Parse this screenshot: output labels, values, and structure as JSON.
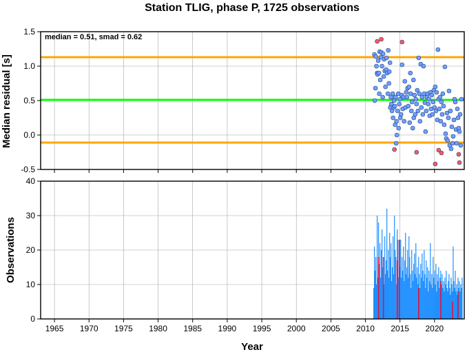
{
  "chart_data": [
    {
      "type": "scatter",
      "title": "Station TLIG, phase P, 1725 observations",
      "xlabel": "",
      "ylabel": "Median residual [s]",
      "xlim": [
        1963,
        2024.3
      ],
      "ylim": [
        -0.5,
        1.5
      ],
      "yticks": [
        "1.5",
        "1.0",
        "0.5",
        "0.0",
        "-0.5"
      ],
      "annotation": "median = 0.51, smad = 0.62",
      "reference_lines": [
        {
          "y": 1.13,
          "color": "#ffa500"
        },
        {
          "y": 0.51,
          "color": "#00ff00"
        },
        {
          "y": -0.11,
          "color": "#ffa500"
        }
      ],
      "series": [
        {
          "color": "#6fa0ff",
          "points": [
            [
              2011.3,
              1.17
            ],
            [
              2011.35,
              0.5
            ],
            [
              2011.45,
              0.68
            ],
            [
              2011.5,
              1.14
            ],
            [
              2011.6,
              1.0
            ],
            [
              2011.7,
              0.9
            ],
            [
              2011.75,
              0.88
            ],
            [
              2011.85,
              1.08
            ],
            [
              2011.95,
              0.9
            ],
            [
              2012.0,
              0.6
            ],
            [
              2012.05,
              1.21
            ],
            [
              2012.15,
              0.8
            ],
            [
              2012.25,
              1.13
            ],
            [
              2012.3,
              1.2
            ],
            [
              2012.4,
              1.0
            ],
            [
              2012.5,
              0.55
            ],
            [
              2012.55,
              1.18
            ],
            [
              2012.65,
              0.85
            ],
            [
              2012.7,
              1.1
            ],
            [
              2012.8,
              0.93
            ],
            [
              2012.9,
              0.7
            ],
            [
              2013.0,
              0.95
            ],
            [
              2013.05,
              1.12
            ],
            [
              2013.15,
              0.9
            ],
            [
              2013.25,
              0.6
            ],
            [
              2013.3,
              1.23
            ],
            [
              2013.4,
              0.75
            ],
            [
              2013.45,
              0.92
            ],
            [
              2013.55,
              1.05
            ],
            [
              2013.6,
              0.4
            ],
            [
              2013.7,
              0.55
            ],
            [
              2013.75,
              0.45
            ],
            [
              2013.85,
              0.35
            ],
            [
              2013.95,
              0.6
            ],
            [
              2014.0,
              0.25
            ],
            [
              2014.1,
              0.4
            ],
            [
              2014.15,
              0.5
            ],
            [
              2014.25,
              0.42
            ],
            [
              2014.3,
              0.15
            ],
            [
              2014.35,
              0.55
            ],
            [
              2014.45,
              -0.12
            ],
            [
              2014.5,
              0.2
            ],
            [
              2014.55,
              0.0
            ],
            [
              2014.65,
              0.35
            ],
            [
              2014.75,
              0.6
            ],
            [
              2014.8,
              0.1
            ],
            [
              2014.9,
              0.45
            ],
            [
              2015.0,
              0.52
            ],
            [
              2015.05,
              0.25
            ],
            [
              2015.15,
              0.3
            ],
            [
              2015.25,
              0.58
            ],
            [
              2015.3,
              1.02
            ],
            [
              2015.4,
              0.38
            ],
            [
              2015.5,
              0.55
            ],
            [
              2015.6,
              0.2
            ],
            [
              2015.7,
              0.78
            ],
            [
              2015.8,
              0.4
            ],
            [
              2015.9,
              0.62
            ],
            [
              2016.0,
              0.55
            ],
            [
              2016.1,
              0.68
            ],
            [
              2016.2,
              0.42
            ],
            [
              2016.3,
              0.7
            ],
            [
              2016.4,
              0.18
            ],
            [
              2016.5,
              0.9
            ],
            [
              2016.55,
              0.6
            ],
            [
              2016.65,
              0.35
            ],
            [
              2016.75,
              0.48
            ],
            [
              2016.85,
              0.1
            ],
            [
              2016.95,
              0.8
            ],
            [
              2017.0,
              0.25
            ],
            [
              2017.1,
              0.58
            ],
            [
              2017.2,
              0.3
            ],
            [
              2017.3,
              0.52
            ],
            [
              2017.4,
              0.45
            ],
            [
              2017.5,
              0.65
            ],
            [
              2017.6,
              0.35
            ],
            [
              2017.7,
              1.12
            ],
            [
              2017.8,
              0.6
            ],
            [
              2017.9,
              0.2
            ],
            [
              2018.0,
              1.03
            ],
            [
              2018.1,
              0.4
            ],
            [
              2018.2,
              0.55
            ],
            [
              2018.3,
              0.3
            ],
            [
              2018.4,
              1.0
            ],
            [
              2018.5,
              0.6
            ],
            [
              2018.6,
              0.47
            ],
            [
              2018.7,
              0.05
            ],
            [
              2018.8,
              0.35
            ],
            [
              2018.9,
              0.55
            ],
            [
              2019.0,
              0.6
            ],
            [
              2019.1,
              0.45
            ],
            [
              2019.2,
              0.52
            ],
            [
              2019.3,
              0.28
            ],
            [
              2019.4,
              0.62
            ],
            [
              2019.5,
              0.38
            ],
            [
              2019.6,
              0.58
            ],
            [
              2019.7,
              0.3
            ],
            [
              2019.8,
              0.48
            ],
            [
              2019.9,
              0.65
            ],
            [
              2020.0,
              0.4
            ],
            [
              2020.1,
              0.7
            ],
            [
              2020.2,
              0.35
            ],
            [
              2020.3,
              0.62
            ],
            [
              2020.4,
              0.22
            ],
            [
              2020.5,
              1.24
            ],
            [
              2020.6,
              0.52
            ],
            [
              2020.7,
              0.38
            ],
            [
              2020.8,
              0.55
            ],
            [
              2020.9,
              0.2
            ],
            [
              2021.0,
              0.48
            ],
            [
              2021.1,
              0.3
            ],
            [
              2021.2,
              0.6
            ],
            [
              2021.3,
              0.42
            ],
            [
              2021.4,
              0.15
            ],
            [
              2021.5,
              0.99
            ],
            [
              2021.6,
              0.02
            ],
            [
              2021.7,
              -0.05
            ],
            [
              2021.8,
              0.32
            ],
            [
              2021.9,
              -0.08
            ],
            [
              2022.0,
              0.25
            ],
            [
              2022.1,
              0.64
            ],
            [
              2022.2,
              -0.15
            ],
            [
              2022.3,
              0.35
            ],
            [
              2022.4,
              -0.2
            ],
            [
              2022.5,
              0.12
            ],
            [
              2022.6,
              -0.12
            ],
            [
              2022.7,
              -0.02
            ],
            [
              2022.8,
              0.22
            ],
            [
              2022.9,
              0.52
            ],
            [
              2023.0,
              0.48
            ],
            [
              2023.1,
              0.08
            ],
            [
              2023.2,
              -0.12
            ],
            [
              2023.3,
              0.38
            ],
            [
              2023.4,
              0.25
            ],
            [
              2023.5,
              0.1
            ],
            [
              2023.6,
              0.05
            ],
            [
              2023.7,
              0.3
            ],
            [
              2023.8,
              -0.15
            ],
            [
              2023.9,
              0.52
            ]
          ]
        },
        {
          "color": "#ff5a5a",
          "points": [
            [
              2011.7,
              1.36
            ],
            [
              2012.3,
              1.39
            ],
            [
              2014.2,
              -0.21
            ],
            [
              2015.3,
              1.35
            ],
            [
              2017.4,
              -0.25
            ],
            [
              2020.1,
              -0.42
            ],
            [
              2020.6,
              -0.22
            ],
            [
              2021.0,
              -0.26
            ],
            [
              2023.5,
              -0.28
            ],
            [
              2023.6,
              -0.4
            ]
          ]
        }
      ]
    },
    {
      "type": "bar",
      "title": "",
      "xlabel": "Year",
      "ylabel": "Observations",
      "xlim": [
        1963,
        2024.3
      ],
      "ylim": [
        0,
        40
      ],
      "yticks": [
        "40",
        "30",
        "20",
        "10",
        "0"
      ],
      "xticks": [
        "1965",
        "1970",
        "1975",
        "1980",
        "1985",
        "1990",
        "1995",
        "2000",
        "2005",
        "2010",
        "2015",
        "2020"
      ],
      "series": [
        {
          "color": "#1e8fff",
          "x": [
            2011.2,
            2011.3,
            2011.4,
            2011.5,
            2011.6,
            2011.7,
            2011.8,
            2011.9,
            2012.0,
            2012.1,
            2012.2,
            2012.3,
            2012.4,
            2012.5,
            2012.6,
            2012.7,
            2012.8,
            2012.9,
            2013.0,
            2013.1,
            2013.2,
            2013.3,
            2013.4,
            2013.5,
            2013.6,
            2013.7,
            2013.8,
            2013.9,
            2014.0,
            2014.1,
            2014.2,
            2014.3,
            2014.4,
            2014.5,
            2014.6,
            2014.7,
            2014.8,
            2014.9,
            2015.0,
            2015.1,
            2015.2,
            2015.3,
            2015.4,
            2015.5,
            2015.6,
            2015.7,
            2015.8,
            2015.9,
            2016.0,
            2016.1,
            2016.2,
            2016.3,
            2016.4,
            2016.5,
            2016.6,
            2016.7,
            2016.8,
            2016.9,
            2017.0,
            2017.1,
            2017.2,
            2017.3,
            2017.4,
            2017.5,
            2017.6,
            2017.7,
            2017.8,
            2017.9,
            2018.0,
            2018.1,
            2018.2,
            2018.3,
            2018.4,
            2018.5,
            2018.6,
            2018.7,
            2018.8,
            2018.9,
            2019.0,
            2019.1,
            2019.2,
            2019.3,
            2019.4,
            2019.5,
            2019.6,
            2019.7,
            2019.8,
            2019.9,
            2020.0,
            2020.1,
            2020.2,
            2020.3,
            2020.4,
            2020.5,
            2020.6,
            2020.7,
            2020.8,
            2020.9,
            2021.0,
            2021.1,
            2021.2,
            2021.3,
            2021.4,
            2021.5,
            2021.6,
            2021.7,
            2021.8,
            2021.9,
            2022.0,
            2022.1,
            2022.2,
            2022.3,
            2022.4,
            2022.5,
            2022.6,
            2022.7,
            2022.8,
            2022.9,
            2023.0,
            2023.1,
            2023.2,
            2023.3,
            2023.4,
            2023.5,
            2023.6,
            2023.7,
            2023.8,
            2023.9,
            2024.0
          ],
          "values": [
            9,
            21,
            14,
            18,
            10,
            30,
            12,
            28,
            16,
            22,
            12,
            20,
            26,
            15,
            18,
            10,
            24,
            13,
            17,
            32,
            14,
            20,
            12,
            25,
            18,
            22,
            11,
            15,
            24,
            13,
            30,
            20,
            18,
            10,
            26,
            23,
            12,
            20,
            15,
            23,
            12,
            18,
            14,
            21,
            11,
            17,
            25,
            13,
            15,
            20,
            12,
            24,
            18,
            13,
            9,
            20,
            14,
            11,
            16,
            19,
            13,
            22,
            12,
            15,
            10,
            18,
            13,
            9,
            16,
            12,
            19,
            14,
            11,
            20,
            13,
            9,
            17,
            12,
            15,
            8,
            14,
            11,
            22,
            10,
            13,
            9,
            18,
            12,
            14,
            10,
            16,
            8,
            13,
            11,
            15,
            9,
            12,
            14,
            10,
            13,
            9,
            11,
            8,
            12,
            10,
            14,
            9,
            8,
            11,
            13,
            9,
            7,
            12,
            10,
            8,
            21,
            11,
            9,
            14,
            8,
            10,
            7,
            12,
            9,
            11,
            8,
            10,
            9,
            12
          ],
          "highlight_color": "#dc143c",
          "highlight": [
            [
              2011.9,
              18
            ],
            [
              2012.6,
              18
            ],
            [
              2014.6,
              17
            ],
            [
              2014.9,
              23
            ],
            [
              2017.7,
              9
            ],
            [
              2020.9,
              11
            ],
            [
              2022.6,
              5
            ],
            [
              2023.4,
              8
            ]
          ]
        }
      ]
    }
  ]
}
